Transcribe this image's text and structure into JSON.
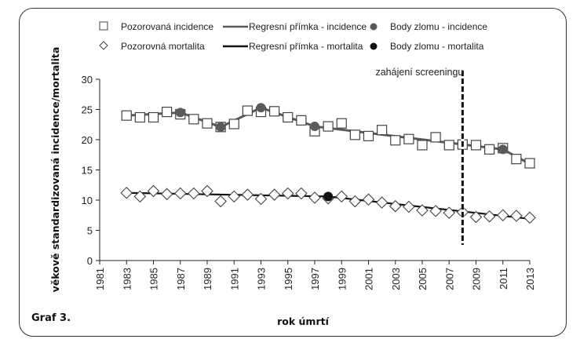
{
  "chart_data": {
    "type": "line",
    "caption": "Graf 3.",
    "xlabel": "rok úmrtí",
    "ylabel": "věkově standardizovaná incidence/mortalita",
    "xlim": [
      1981,
      2013
    ],
    "ylim": [
      0,
      30
    ],
    "x_ticks": [
      1981,
      1983,
      1985,
      1987,
      1989,
      1991,
      1993,
      1995,
      1997,
      1999,
      2001,
      2003,
      2005,
      2007,
      2009,
      2011,
      2013
    ],
    "y_ticks": [
      0,
      5,
      10,
      15,
      20,
      25,
      30
    ],
    "grid": false,
    "legend_position": "top",
    "legend": [
      {
        "key": "obs_inc",
        "label": "Pozorovaná incidence",
        "symbol": "square-open"
      },
      {
        "key": "reg_inc",
        "label": "Regresní přímka - incidence",
        "symbol": "line-gray"
      },
      {
        "key": "bp_inc",
        "label": "Body zlomu - incidence",
        "symbol": "circle-gray"
      },
      {
        "key": "obs_mort",
        "label": "Pozorovná mortalita",
        "symbol": "diamond-open"
      },
      {
        "key": "reg_mort",
        "label": "Regresní přímka - mortalita",
        "symbol": "line-black"
      },
      {
        "key": "bp_mort",
        "label": "Body zlomu - mortalita",
        "symbol": "circle-black"
      }
    ],
    "x": [
      1983,
      1984,
      1985,
      1986,
      1987,
      1988,
      1989,
      1990,
      1991,
      1992,
      1993,
      1994,
      1995,
      1996,
      1997,
      1998,
      1999,
      2000,
      2001,
      2002,
      2003,
      2004,
      2005,
      2006,
      2007,
      2008,
      2009,
      2010,
      2011,
      2012,
      2013
    ],
    "series": [
      {
        "name": "Pozorovaná incidence",
        "values": [
          24.0,
          23.7,
          23.7,
          24.6,
          24.2,
          23.4,
          22.7,
          22.1,
          22.6,
          24.8,
          24.6,
          24.7,
          23.7,
          23.2,
          21.4,
          22.2,
          22.7,
          20.8,
          20.6,
          21.6,
          19.9,
          20.1,
          19.1,
          20.4,
          19.1,
          19.2,
          19.1,
          18.4,
          18.6,
          16.8,
          16.1
        ]
      },
      {
        "name": "Pozorovná mortalita",
        "values": [
          11.2,
          10.6,
          11.5,
          11.0,
          11.1,
          11.1,
          11.5,
          9.8,
          10.6,
          10.9,
          10.2,
          10.9,
          11.1,
          11.1,
          10.4,
          10.3,
          10.6,
          9.8,
          10.1,
          9.6,
          9.0,
          8.9,
          8.3,
          8.2,
          7.9,
          8.0,
          7.2,
          7.3,
          7.5,
          7.4,
          7.1
        ]
      },
      {
        "name": "Regresní přímka - incidence",
        "points": [
          [
            1983,
            24.0
          ],
          [
            1987,
            24.5
          ],
          [
            1990,
            22.1
          ],
          [
            1993,
            25.3
          ],
          [
            1997,
            22.2
          ],
          [
            2011,
            18.4
          ],
          [
            2013,
            16.0
          ]
        ]
      },
      {
        "name": "Regresní přímka - mortalita",
        "points": [
          [
            1983,
            11.2
          ],
          [
            1998,
            10.6
          ],
          [
            2013,
            6.9
          ]
        ]
      },
      {
        "name": "Body zlomu - incidence",
        "points": [
          [
            1987,
            24.5
          ],
          [
            1990,
            22.1
          ],
          [
            1993,
            25.3
          ],
          [
            1997,
            22.2
          ],
          [
            2011,
            18.4
          ]
        ]
      },
      {
        "name": "Body zlomu - mortalita",
        "points": [
          [
            1998,
            10.6
          ]
        ]
      }
    ],
    "annotations": [
      {
        "label": "zahájení screeningu",
        "x": 2008,
        "style": "dashed-vertical"
      }
    ],
    "colors": {
      "incidence": "#5a5a5a",
      "mortality": "#111111",
      "marker_edge": "#444444",
      "screening_line": "#111111"
    }
  }
}
